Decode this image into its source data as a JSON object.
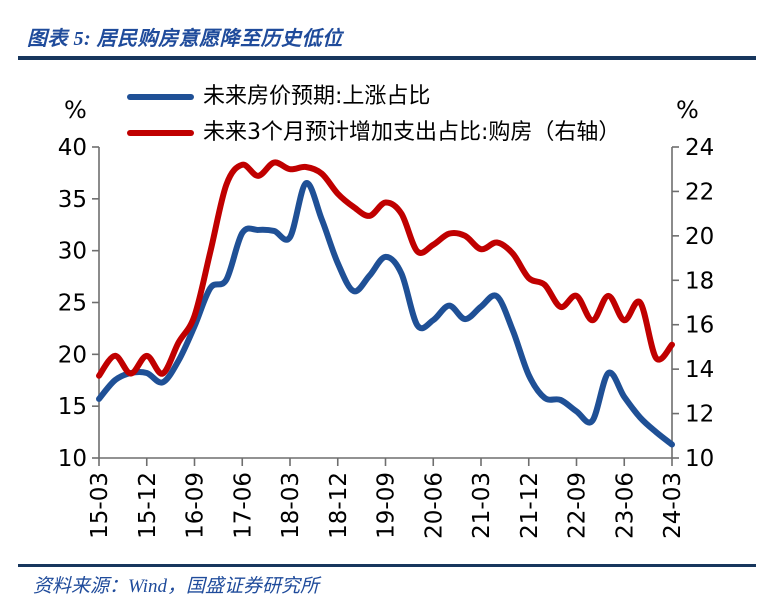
{
  "page": {
    "title": "图表 5:  居民购房意愿降至历史低位",
    "source": "资料来源：Wind，国盛证券研究所"
  },
  "chart_data": {
    "type": "line",
    "title": "居民购房意愿降至历史低位",
    "figure_label": "图表 5",
    "grid": false,
    "legend_position": "top",
    "x": [
      "15-03",
      "15-06",
      "15-09",
      "15-12",
      "16-03",
      "16-06",
      "16-09",
      "16-12",
      "17-03",
      "17-06",
      "17-09",
      "17-12",
      "18-03",
      "18-06",
      "18-09",
      "18-12",
      "19-03",
      "19-06",
      "19-09",
      "19-12",
      "20-03",
      "20-06",
      "20-09",
      "20-12",
      "21-03",
      "21-06",
      "21-09",
      "21-12",
      "22-03",
      "22-06",
      "22-09",
      "22-12",
      "23-03",
      "23-06",
      "23-09",
      "23-12",
      "24-03"
    ],
    "x_tick_labels": [
      "15-03",
      "15-12",
      "16-09",
      "17-06",
      "18-03",
      "18-12",
      "19-09",
      "20-06",
      "21-03",
      "21-12",
      "22-09",
      "23-06",
      "24-03"
    ],
    "series": [
      {
        "name": "未来房价预期:上涨占比",
        "axis": "left",
        "color": "#1F5096",
        "values": [
          15.7,
          17.5,
          18.2,
          18.2,
          17.3,
          19.4,
          22.7,
          26.4,
          27.2,
          31.7,
          32.0,
          31.9,
          31.3,
          36.5,
          33.0,
          28.8,
          26.1,
          27.6,
          29.4,
          27.8,
          22.8,
          23.3,
          24.7,
          23.4,
          24.6,
          25.6,
          22.3,
          18.0,
          15.8,
          15.6,
          14.5,
          13.6,
          18.2,
          15.9,
          13.9,
          12.5,
          11.3
        ]
      },
      {
        "name": "未来3个月预计增加支出占比:购房（右轴）",
        "axis": "right",
        "color": "#C00000",
        "values": [
          13.7,
          14.6,
          13.8,
          14.6,
          13.8,
          15.2,
          16.4,
          19.3,
          22.3,
          23.2,
          22.7,
          23.3,
          23.0,
          23.1,
          22.8,
          21.9,
          21.3,
          20.9,
          21.5,
          21.0,
          19.3,
          19.6,
          20.1,
          20.0,
          19.4,
          19.7,
          19.2,
          18.1,
          17.8,
          16.8,
          17.3,
          16.2,
          17.3,
          16.2,
          17.0,
          14.5,
          15.1
        ]
      }
    ],
    "left_axis": {
      "unit": "%",
      "min": 10,
      "max": 40,
      "step": 5,
      "ticks": [
        40,
        35,
        30,
        25,
        20,
        15,
        10
      ]
    },
    "right_axis": {
      "unit": "%",
      "min": 10,
      "max": 24,
      "step": 2,
      "ticks": [
        24,
        22,
        20,
        18,
        16,
        14,
        12,
        10
      ]
    }
  }
}
